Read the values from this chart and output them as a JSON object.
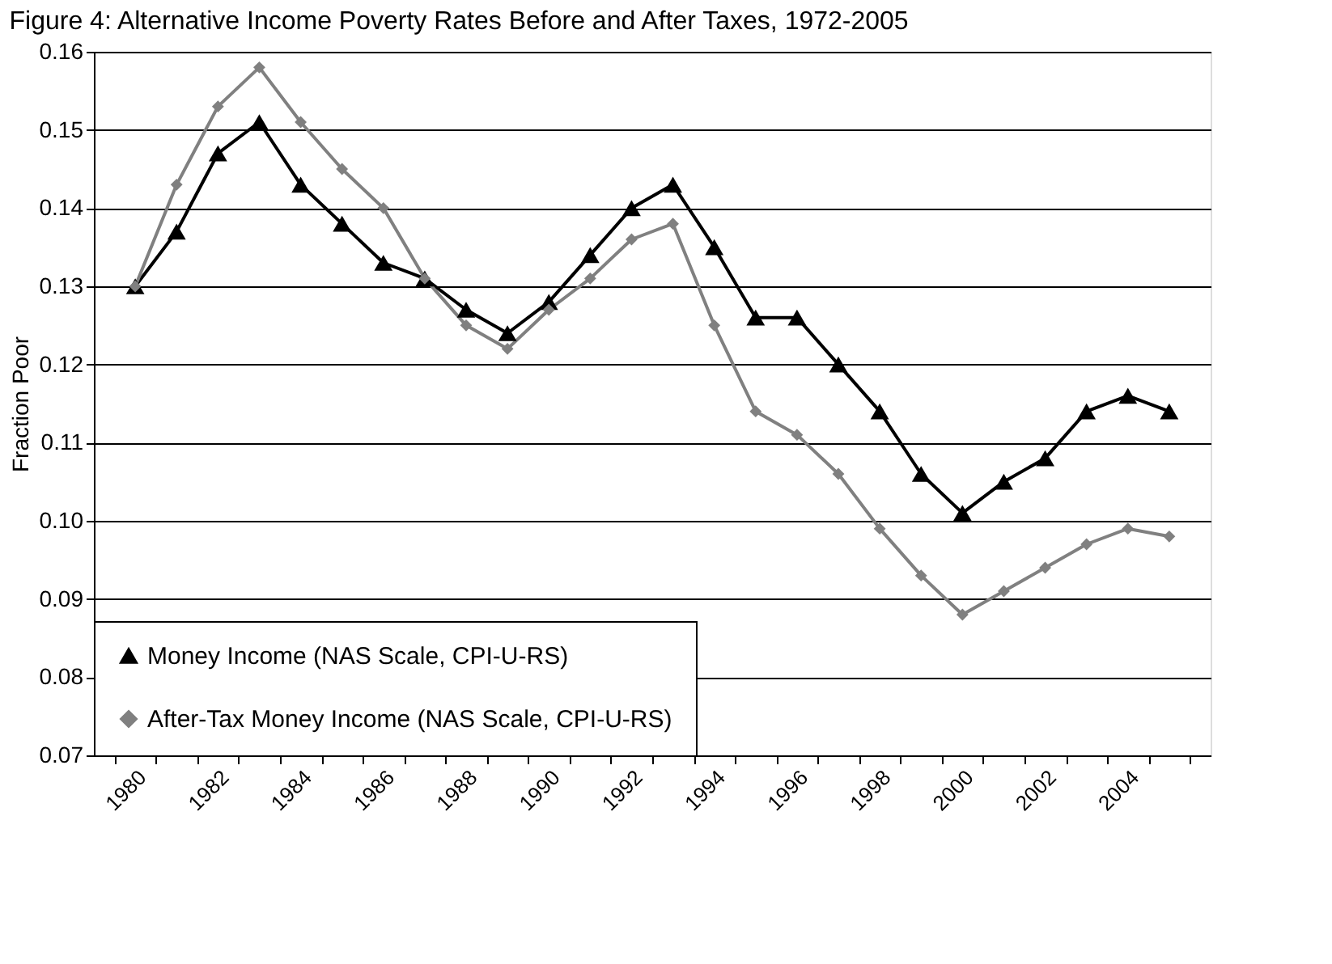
{
  "chart_data": {
    "type": "line",
    "title": "Figure 4:  Alternative Income Poverty Rates Before and After Taxes, 1972-2005",
    "ylabel": "Fraction Poor",
    "categories": [
      "1980",
      null,
      "1982",
      null,
      "1984",
      null,
      "1986",
      null,
      "1988",
      null,
      "1990",
      null,
      "1992",
      null,
      "1994",
      null,
      "1996",
      null,
      "1998",
      null,
      "2000",
      null,
      "2002",
      null,
      "2004",
      null
    ],
    "series": [
      {
        "name": "Money Income (NAS Scale, CPI-U-RS)",
        "color": "#000000",
        "marker": "triangle",
        "values": [
          0.13,
          0.137,
          0.147,
          0.151,
          0.143,
          0.138,
          0.133,
          0.131,
          0.127,
          0.124,
          0.128,
          0.134,
          0.14,
          0.143,
          0.135,
          0.126,
          0.126,
          0.12,
          0.114,
          0.106,
          0.101,
          0.105,
          0.108,
          0.114,
          0.116,
          0.114
        ]
      },
      {
        "name": "After-Tax Money Income (NAS Scale, CPI-U-RS)",
        "color": "#808080",
        "marker": "diamond",
        "values": [
          0.13,
          0.143,
          0.153,
          0.158,
          0.151,
          0.145,
          0.14,
          0.131,
          0.125,
          0.122,
          0.127,
          0.131,
          0.136,
          0.138,
          0.125,
          0.114,
          0.111,
          0.106,
          0.099,
          0.093,
          0.088,
          0.091,
          0.094,
          0.097,
          0.099,
          0.098
        ]
      }
    ],
    "ylim": [
      0.07,
      0.16
    ],
    "yticks": [
      0.07,
      0.08,
      0.09,
      {
        "value": 0.1,
        "label": "0.10"
      },
      0.11,
      0.12,
      0.13,
      0.14,
      0.15,
      0.16
    ],
    "grid": "y",
    "legend": "bottom left",
    "line_style": "solid"
  }
}
